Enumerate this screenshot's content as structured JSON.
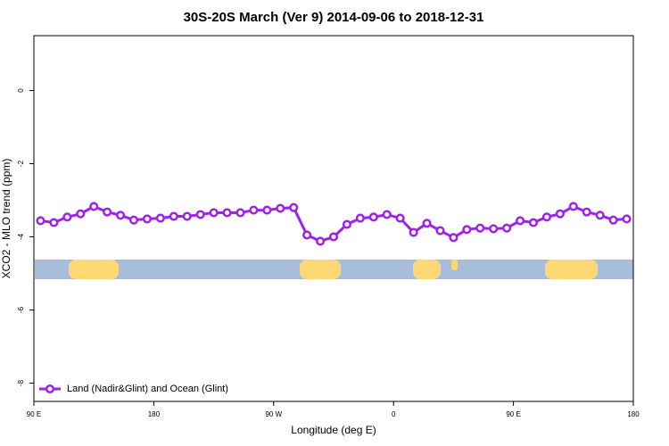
{
  "chart_data": {
    "type": "line",
    "title": "30S-20S March (Ver 9)   2014-09-06 to 2018-12-31",
    "x_label": "Longitude (deg E)",
    "y_label": "XCO2 - MLO trend (ppm)",
    "x": [
      95,
      105,
      115,
      125,
      135,
      145,
      155,
      165,
      175,
      185,
      195,
      205,
      215,
      225,
      235,
      245,
      255,
      265,
      275,
      285,
      295,
      305,
      315,
      325,
      335,
      345,
      355,
      365,
      375,
      385,
      395,
      405,
      415,
      425,
      435,
      445,
      455,
      465,
      475,
      485,
      495,
      505,
      515,
      525,
      535
    ],
    "series": [
      {
        "name": "Land (Nadir&Glint) and Ocean (Glint)",
        "color": "#a020f0",
        "values": [
          -3.56,
          -3.61,
          -3.46,
          -3.37,
          -3.17,
          -3.32,
          -3.41,
          -3.54,
          -3.51,
          -3.49,
          -3.44,
          -3.44,
          -3.39,
          -3.34,
          -3.34,
          -3.34,
          -3.27,
          -3.27,
          -3.22,
          -3.2,
          -3.95,
          -4.12,
          -4.0,
          -3.66,
          -3.49,
          -3.46,
          -3.39,
          -3.49,
          -3.88,
          -3.63,
          -3.83,
          -4.02,
          -3.8,
          -3.76,
          -3.78,
          -3.76,
          -3.56,
          -3.61,
          -3.46,
          -3.37,
          -3.17,
          -3.32,
          -3.41,
          -3.54,
          -3.51
        ]
      }
    ],
    "xlim": [
      90,
      540
    ],
    "xticks": [
      {
        "value": 90,
        "label": "90 E"
      },
      180,
      {
        "value": 270,
        "label": "90 W"
      },
      {
        "value": 360,
        "label": "0"
      },
      {
        "value": 450,
        "label": "90 E"
      },
      {
        "value": 540,
        "label": "180"
      }
    ],
    "ylim": [
      -8.5,
      1.5
    ],
    "yticks": [
      0,
      -2,
      -4,
      -6,
      -8
    ],
    "legend": "bottom-left"
  }
}
